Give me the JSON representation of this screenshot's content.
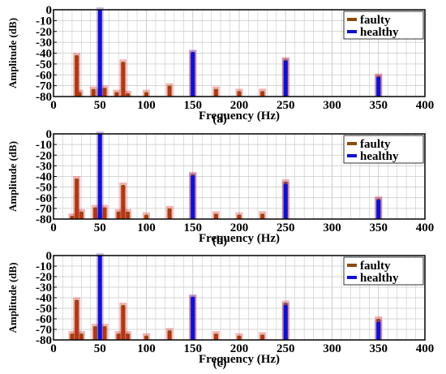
{
  "colors": {
    "faulty": "#8b4a0c",
    "faulty_glow": "#e02020",
    "healthy": "#1010d0",
    "healthy_glow": "#6a40c0",
    "grid": "#c8c8c8"
  },
  "chart_data": [
    {
      "type": "bar",
      "panel_label": "(a)",
      "xlabel": "Frequency (Hz)",
      "ylabel": "Amplitude (dB)",
      "xlim": [
        0,
        400
      ],
      "ylim": [
        -80,
        0
      ],
      "xticks": [
        0,
        50,
        100,
        150,
        200,
        250,
        300,
        350,
        400
      ],
      "yticks": [
        0,
        -10,
        -20,
        -30,
        -40,
        -50,
        -60,
        -70,
        -80
      ],
      "grid": true,
      "legend_position": "top-right",
      "series": [
        {
          "name": "faulty",
          "points": [
            [
              25,
              -42
            ],
            [
              28,
              -76
            ],
            [
              43,
              -73
            ],
            [
              50,
              -75
            ],
            [
              55,
              -72
            ],
            [
              68,
              -76
            ],
            [
              75,
              -48
            ],
            [
              80,
              -77
            ],
            [
              100,
              -76
            ],
            [
              125,
              -70
            ],
            [
              150,
              -40
            ],
            [
              175,
              -73
            ],
            [
              200,
              -75
            ],
            [
              225,
              -75
            ],
            [
              250,
              -46
            ],
            [
              350,
              -61
            ]
          ]
        },
        {
          "name": "healthy",
          "points": [
            [
              50,
              0
            ],
            [
              150,
              -39
            ],
            [
              250,
              -47
            ],
            [
              350,
              -62
            ]
          ]
        }
      ]
    },
    {
      "type": "bar",
      "panel_label": "(b)",
      "xlabel": "Frequency (Hz)",
      "ylabel": "Amplitude (dB)",
      "xlim": [
        0,
        400
      ],
      "ylim": [
        -80,
        0
      ],
      "xticks": [
        0,
        50,
        100,
        150,
        200,
        250,
        300,
        350,
        400
      ],
      "yticks": [
        0,
        -10,
        -20,
        -30,
        -40,
        -50,
        -60,
        -70,
        -80
      ],
      "grid": true,
      "legend_position": "top-right",
      "series": [
        {
          "name": "faulty",
          "points": [
            [
              20,
              -77
            ],
            [
              25,
              -42
            ],
            [
              30,
              -73
            ],
            [
              45,
              -69
            ],
            [
              50,
              -76
            ],
            [
              55,
              -69
            ],
            [
              70,
              -73
            ],
            [
              75,
              -48
            ],
            [
              80,
              -73
            ],
            [
              100,
              -76
            ],
            [
              125,
              -70
            ],
            [
              150,
              -38
            ],
            [
              175,
              -75
            ],
            [
              200,
              -76
            ],
            [
              225,
              -75
            ],
            [
              250,
              -45
            ],
            [
              350,
              -61
            ]
          ]
        },
        {
          "name": "healthy",
          "points": [
            [
              50,
              0
            ],
            [
              150,
              -39
            ],
            [
              250,
              -47
            ],
            [
              350,
              -62
            ]
          ]
        }
      ]
    },
    {
      "type": "bar",
      "panel_label": "(c)",
      "xlabel": "Frequency (Hz)",
      "ylabel": "Amplitude (dB)",
      "xlim": [
        0,
        400
      ],
      "ylim": [
        -80,
        0
      ],
      "xticks": [
        0,
        50,
        100,
        150,
        200,
        250,
        300,
        350,
        400
      ],
      "yticks": [
        0,
        -10,
        -20,
        -30,
        -40,
        -50,
        -60,
        -70,
        -80
      ],
      "grid": true,
      "legend_position": "top-right",
      "series": [
        {
          "name": "faulty",
          "points": [
            [
              20,
              -74
            ],
            [
              25,
              -42
            ],
            [
              30,
              -74
            ],
            [
              45,
              -67
            ],
            [
              55,
              -67
            ],
            [
              70,
              -74
            ],
            [
              75,
              -47
            ],
            [
              80,
              -74
            ],
            [
              100,
              -76
            ],
            [
              125,
              -71
            ],
            [
              150,
              -40
            ],
            [
              175,
              -74
            ],
            [
              200,
              -76
            ],
            [
              225,
              -75
            ],
            [
              250,
              -45
            ],
            [
              350,
              -60
            ]
          ]
        },
        {
          "name": "healthy",
          "points": [
            [
              50,
              0
            ],
            [
              150,
              -39
            ],
            [
              250,
              -47
            ],
            [
              350,
              -63
            ]
          ]
        }
      ]
    }
  ]
}
